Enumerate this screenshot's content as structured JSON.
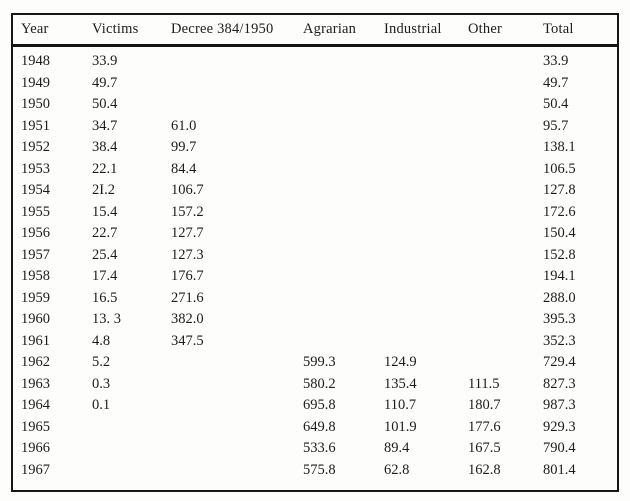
{
  "page": {
    "background_color": "#fdfdfc",
    "text_color": "#1c1c1c",
    "border_color": "#171717"
  },
  "chart_data": {
    "type": "table",
    "title": "",
    "columns": [
      "Year",
      "Victims",
      "Decree 384/1950",
      "Agrarian",
      "Industrial",
      "Other",
      "Total"
    ],
    "rows": [
      [
        "1948",
        "33.9",
        "",
        "",
        "",
        "",
        "33.9"
      ],
      [
        "1949",
        "49.7",
        "",
        "",
        "",
        "",
        "49.7"
      ],
      [
        "1950",
        "50.4",
        "",
        "",
        "",
        "",
        "50.4"
      ],
      [
        "1951",
        "34.7",
        "61.0",
        "",
        "",
        "",
        "95.7"
      ],
      [
        "1952",
        "38.4",
        "99.7",
        "",
        "",
        "",
        "138.1"
      ],
      [
        "1953",
        "22.1",
        "84.4",
        "",
        "",
        "",
        "106.5"
      ],
      [
        "1954",
        "2I.2",
        "106.7",
        "",
        "",
        "",
        "127.8"
      ],
      [
        "1955",
        "15.4",
        "157.2",
        "",
        "",
        "",
        "172.6"
      ],
      [
        "1956",
        "22.7",
        "127.7",
        "",
        "",
        "",
        "150.4"
      ],
      [
        "1957",
        "25.4",
        "127.3",
        "",
        "",
        "",
        "152.8"
      ],
      [
        "1958",
        "17.4",
        "176.7",
        "",
        "",
        "",
        "194.1"
      ],
      [
        "1959",
        "16.5",
        "271.6",
        "",
        "",
        "",
        "288.0"
      ],
      [
        "1960",
        "13. 3",
        "382.0",
        "",
        "",
        "",
        "395.3"
      ],
      [
        "1961",
        "4.8",
        "347.5",
        "",
        "",
        "",
        "352.3"
      ],
      [
        "1962",
        "5.2",
        "",
        "599.3",
        "124.9",
        "",
        "729.4"
      ],
      [
        "1963",
        "0.3",
        "",
        "580.2",
        "135.4",
        "111.5",
        "827.3"
      ],
      [
        "1964",
        "0.1",
        "",
        "695.8",
        "110.7",
        "180.7",
        "987.3"
      ],
      [
        "1965",
        "",
        "",
        "649.8",
        "101.9",
        "177.6",
        "929.3"
      ],
      [
        "1966",
        "",
        "",
        "533.6",
        "89.4",
        "167.5",
        "790.4"
      ],
      [
        "1967",
        "",
        "",
        "575.8",
        "62.8",
        "162.8",
        "801.4"
      ]
    ]
  }
}
